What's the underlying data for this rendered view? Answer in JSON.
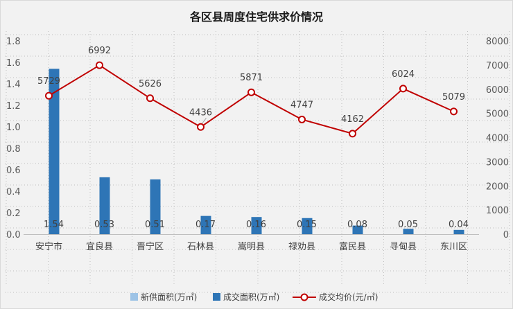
{
  "chart_data": {
    "type": "bar",
    "title": "各区县周度住宅供求价情况",
    "categories": [
      "安宁市",
      "宜良县",
      "晋宁区",
      "石林县",
      "嵩明县",
      "禄劝县",
      "富民县",
      "寻甸县",
      "东川区"
    ],
    "series": [
      {
        "name": "新供面积(万㎡)",
        "type": "bar",
        "axis": "left",
        "color": "#9dc3e6",
        "values": [
          0,
          0,
          0,
          0,
          0,
          0,
          0,
          0,
          0
        ]
      },
      {
        "name": "成交面积(万㎡)",
        "type": "bar",
        "axis": "left",
        "color": "#2e75b6",
        "values": [
          1.54,
          0.53,
          0.51,
          0.17,
          0.16,
          0.15,
          0.08,
          0.05,
          0.04
        ]
      },
      {
        "name": "成交均价(元/㎡)",
        "type": "line",
        "axis": "right",
        "color": "#c00000",
        "values": [
          5729,
          6992,
          5626,
          4436,
          5871,
          4747,
          4162,
          6024,
          5079
        ]
      }
    ],
    "y_left": {
      "min": 0,
      "max": 1.8,
      "ticks": [
        "0.0",
        "0.2",
        "0.4",
        "0.6",
        "0.8",
        "1.0",
        "1.2",
        "1.4",
        "1.6",
        "1.8"
      ]
    },
    "y_right": {
      "min": 0,
      "max": 8000,
      "ticks": [
        "0",
        "1000",
        "2000",
        "3000",
        "4000",
        "5000",
        "6000",
        "7000",
        "8000"
      ]
    },
    "bar_labels": [
      "1.54",
      "0.53",
      "0.51",
      "0.17",
      "0.16",
      "0.15",
      "0.08",
      "0.05",
      "0.04"
    ],
    "line_labels": [
      "5729",
      "6992",
      "5626",
      "4436",
      "5871",
      "4747",
      "4162",
      "6024",
      "5079"
    ],
    "grid": true,
    "legend_position": "bottom"
  }
}
